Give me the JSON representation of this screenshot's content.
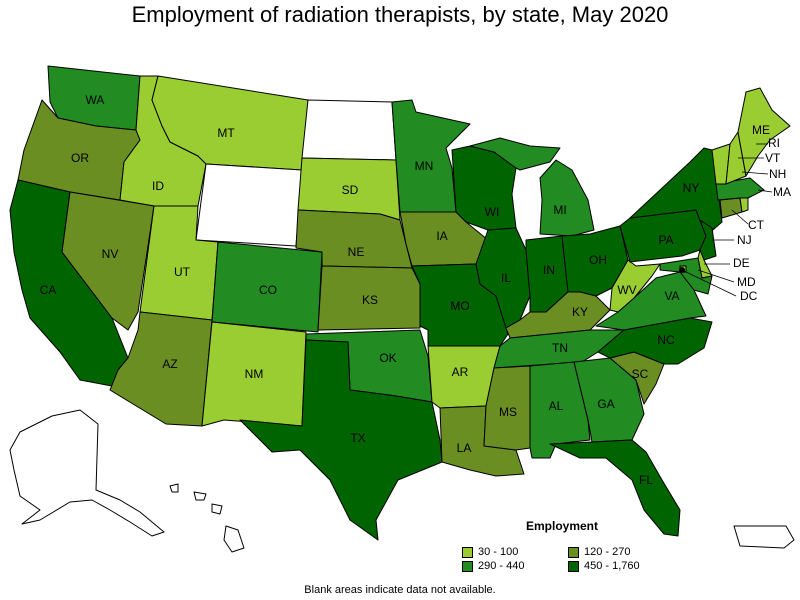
{
  "title": "Employment of radiation therapists, by state, May 2020",
  "legend": {
    "title": "Employment",
    "items": [
      {
        "label": "30 - 100",
        "color": "#9acd32"
      },
      {
        "label": "120 - 270",
        "color": "#6b8e23"
      },
      {
        "label": "290 - 440",
        "color": "#228b22"
      },
      {
        "label": "450 - 1,760",
        "color": "#006400"
      }
    ]
  },
  "footnote": "Blank areas indicate data not available.",
  "no_data_color": "#ffffff",
  "states": {
    "WA": {
      "label": "WA",
      "bin": 2
    },
    "OR": {
      "label": "OR",
      "bin": 1
    },
    "CA": {
      "label": "CA",
      "bin": 3
    },
    "ID": {
      "label": "ID",
      "bin": 0
    },
    "NV": {
      "label": "NV",
      "bin": 1
    },
    "MT": {
      "label": "MT",
      "bin": 0
    },
    "WY": {
      "label": "",
      "bin": null
    },
    "UT": {
      "label": "UT",
      "bin": 0
    },
    "AZ": {
      "label": "AZ",
      "bin": 1
    },
    "CO": {
      "label": "CO",
      "bin": 2
    },
    "NM": {
      "label": "NM",
      "bin": 0
    },
    "ND": {
      "label": "",
      "bin": null
    },
    "SD": {
      "label": "SD",
      "bin": 0
    },
    "NE": {
      "label": "NE",
      "bin": 1
    },
    "KS": {
      "label": "KS",
      "bin": 1
    },
    "OK": {
      "label": "OK",
      "bin": 2
    },
    "TX": {
      "label": "TX",
      "bin": 3
    },
    "MN": {
      "label": "MN",
      "bin": 2
    },
    "IA": {
      "label": "IA",
      "bin": 1
    },
    "MO": {
      "label": "MO",
      "bin": 3
    },
    "AR": {
      "label": "AR",
      "bin": 0
    },
    "LA": {
      "label": "LA",
      "bin": 1
    },
    "WI": {
      "label": "WI",
      "bin": 3
    },
    "IL": {
      "label": "IL",
      "bin": 3
    },
    "MI": {
      "label": "MI",
      "bin": 2
    },
    "IN": {
      "label": "IN",
      "bin": 3
    },
    "OH": {
      "label": "OH",
      "bin": 3
    },
    "KY": {
      "label": "KY",
      "bin": 1
    },
    "TN": {
      "label": "TN",
      "bin": 2
    },
    "MS": {
      "label": "MS",
      "bin": 1
    },
    "AL": {
      "label": "AL",
      "bin": 2
    },
    "GA": {
      "label": "GA",
      "bin": 2
    },
    "FL": {
      "label": "FL",
      "bin": 3
    },
    "SC": {
      "label": "SC",
      "bin": 1
    },
    "NC": {
      "label": "NC",
      "bin": 3
    },
    "VA": {
      "label": "VA",
      "bin": 2
    },
    "WV": {
      "label": "WV",
      "bin": 0
    },
    "PA": {
      "label": "PA",
      "bin": 3
    },
    "NY": {
      "label": "NY",
      "bin": 3
    },
    "ME": {
      "label": "ME",
      "bin": 0
    },
    "VT": {
      "label": "VT",
      "bin": 0
    },
    "NH": {
      "label": "NH",
      "bin": 0
    },
    "MA": {
      "label": "MA",
      "bin": 2
    },
    "CT": {
      "label": "CT",
      "bin": 1
    },
    "RI": {
      "label": "RI",
      "bin": 0
    },
    "NJ": {
      "label": "NJ",
      "bin": 3
    },
    "DE": {
      "label": "DE",
      "bin": 0
    },
    "MD": {
      "label": "MD",
      "bin": 2
    },
    "DC": {
      "label": "DC",
      "bin": 0
    },
    "AK": {
      "label": "",
      "bin": null
    },
    "HI": {
      "label": "",
      "bin": null
    },
    "PR": {
      "label": "",
      "bin": null
    }
  }
}
